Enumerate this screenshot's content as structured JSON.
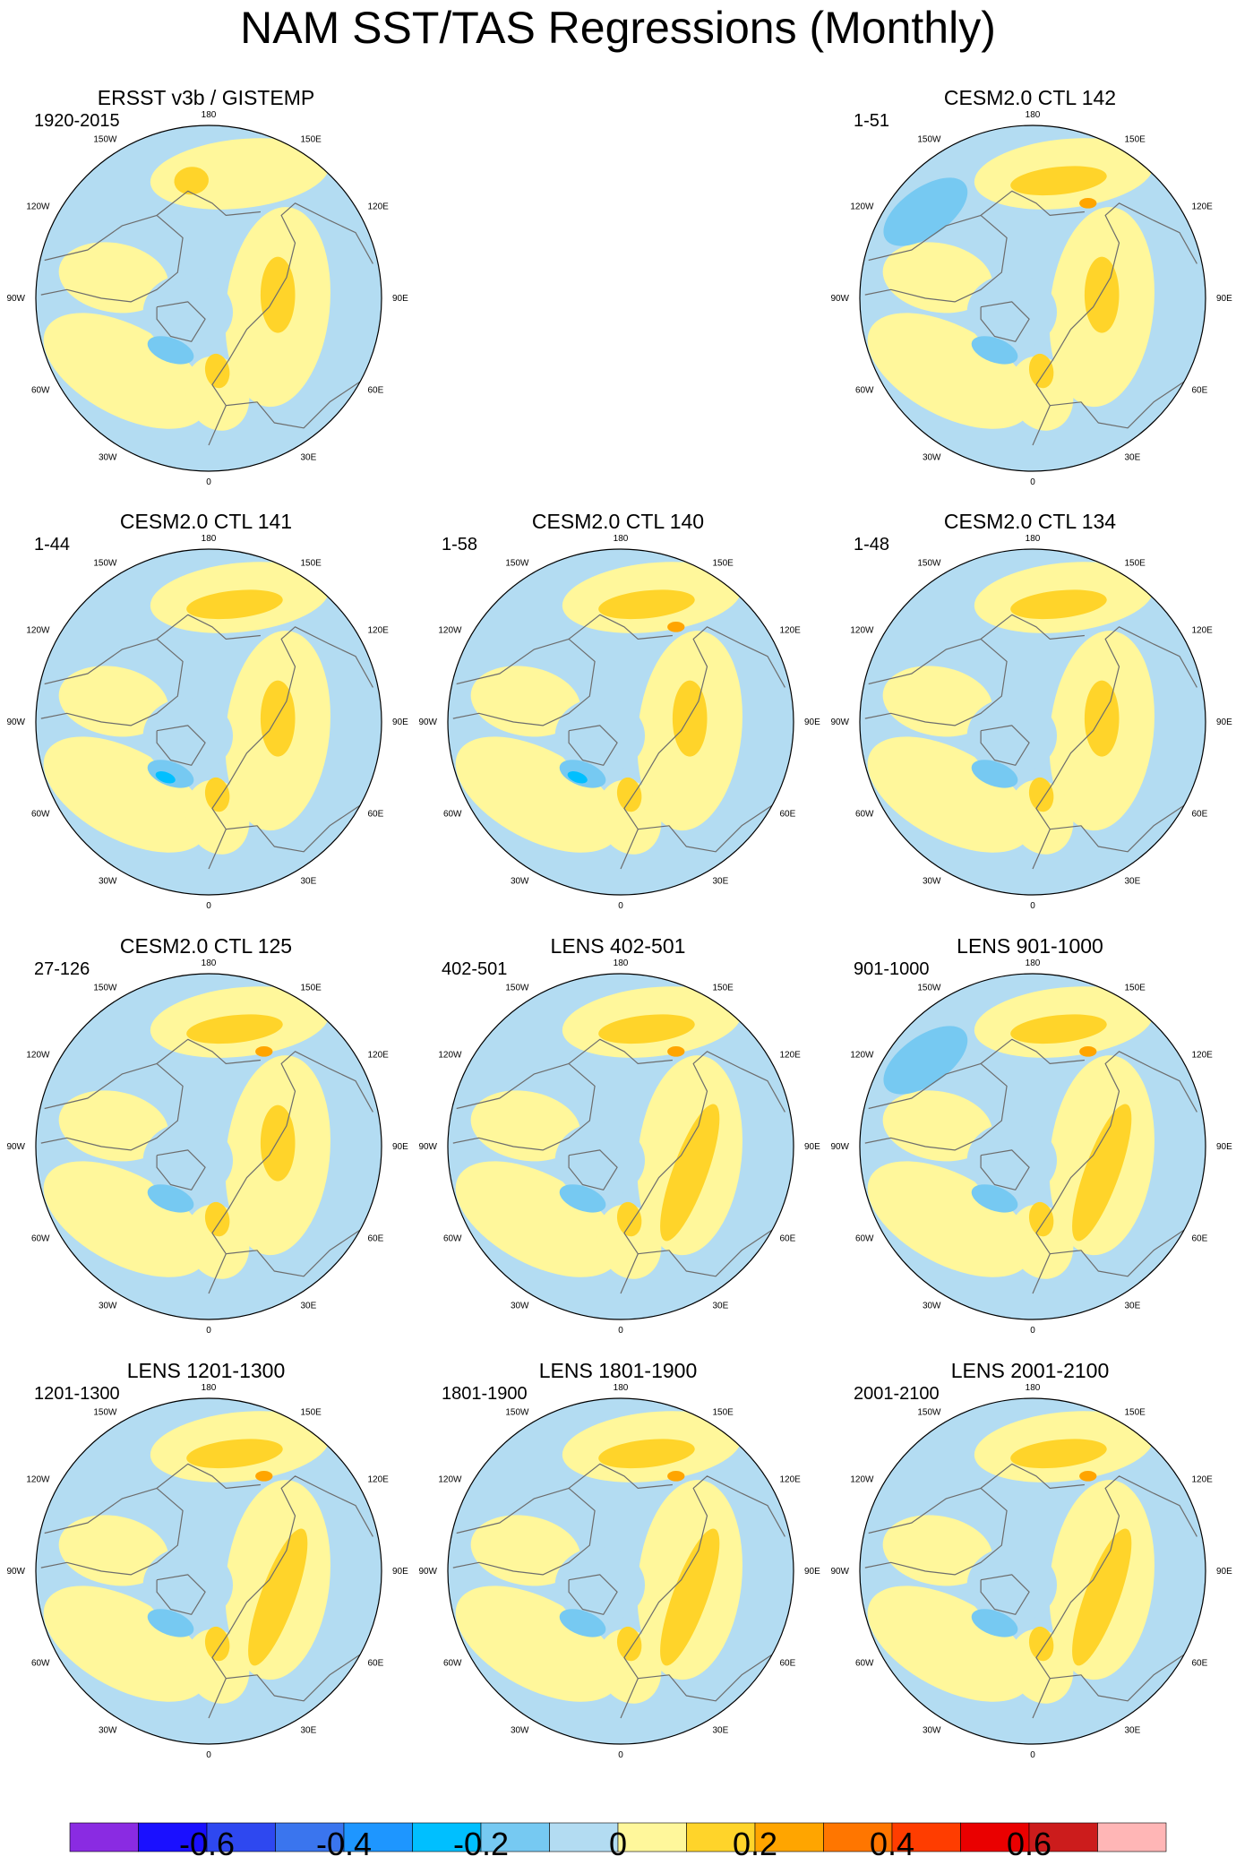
{
  "title": "NAM SST/TAS Regressions (Monthly)",
  "lon_labels": [
    "180",
    "150E",
    "120E",
    "90E",
    "60E",
    "30E",
    "0",
    "30W",
    "60W",
    "90W",
    "120W",
    "150W"
  ],
  "panels": [
    {
      "title": "ERSST v3b / GISTEMP",
      "years": "1920-2015"
    },
    {
      "title": "CESM2.0 CTL 142",
      "years": "1-51"
    },
    {
      "title": "CESM2.0 CTL 141",
      "years": "1-44"
    },
    {
      "title": "CESM2.0 CTL 140",
      "years": "1-58"
    },
    {
      "title": "CESM2.0 CTL 134",
      "years": "1-48"
    },
    {
      "title": "CESM2.0 CTL 125",
      "years": "27-126"
    },
    {
      "title": "LENS 402-501",
      "years": "402-501"
    },
    {
      "title": "LENS 901-1000",
      "years": "901-1000"
    },
    {
      "title": "LENS 1201-1300",
      "years": "1201-1300"
    },
    {
      "title": "LENS 1801-1900",
      "years": "1801-1900"
    },
    {
      "title": "LENS 2001-2100",
      "years": "2001-2100"
    }
  ],
  "colorbar": {
    "labels": [
      "-0.6",
      "-0.4",
      "-0.2",
      "0",
      "0.2",
      "0.4",
      "0.6"
    ],
    "colors": [
      "#8a2be2",
      "#1a10ff",
      "#2e48f0",
      "#3a75ee",
      "#1e96ff",
      "#00bfff",
      "#76c9f2",
      "#b3dcf2",
      "#fff79b",
      "#ffd42a",
      "#ffa500",
      "#ff7600",
      "#ff3d00",
      "#ea0000",
      "#cc1c1c",
      "#ffb6b6"
    ],
    "levels": [
      -0.7,
      -0.6,
      -0.5,
      -0.4,
      -0.3,
      -0.2,
      -0.1,
      0,
      0.1,
      0.2,
      0.3,
      0.4,
      0.5,
      0.6,
      0.7
    ]
  }
}
